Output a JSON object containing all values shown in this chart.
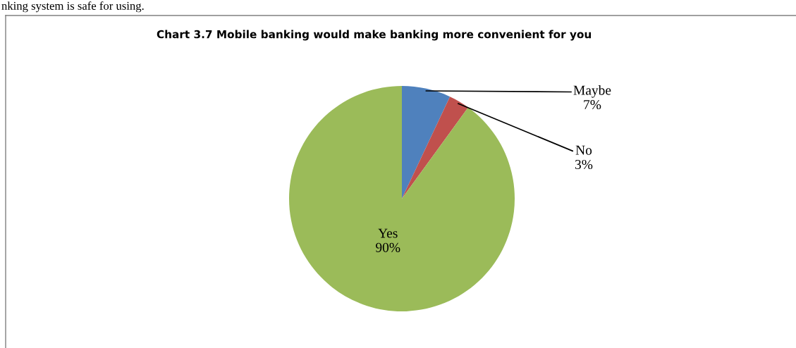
{
  "chart_data": {
    "type": "pie",
    "title": "Chart 3.7 Mobile banking would make banking more convenient for you",
    "categories": [
      "Maybe",
      "No",
      "Yes"
    ],
    "values": [
      7,
      3,
      90
    ],
    "value_labels": [
      "7%",
      "3%",
      "90%"
    ],
    "colors": [
      "#4f81bd",
      "#c0504d",
      "#9bbb59"
    ],
    "annotations": [
      "nking system is safe for using."
    ]
  }
}
